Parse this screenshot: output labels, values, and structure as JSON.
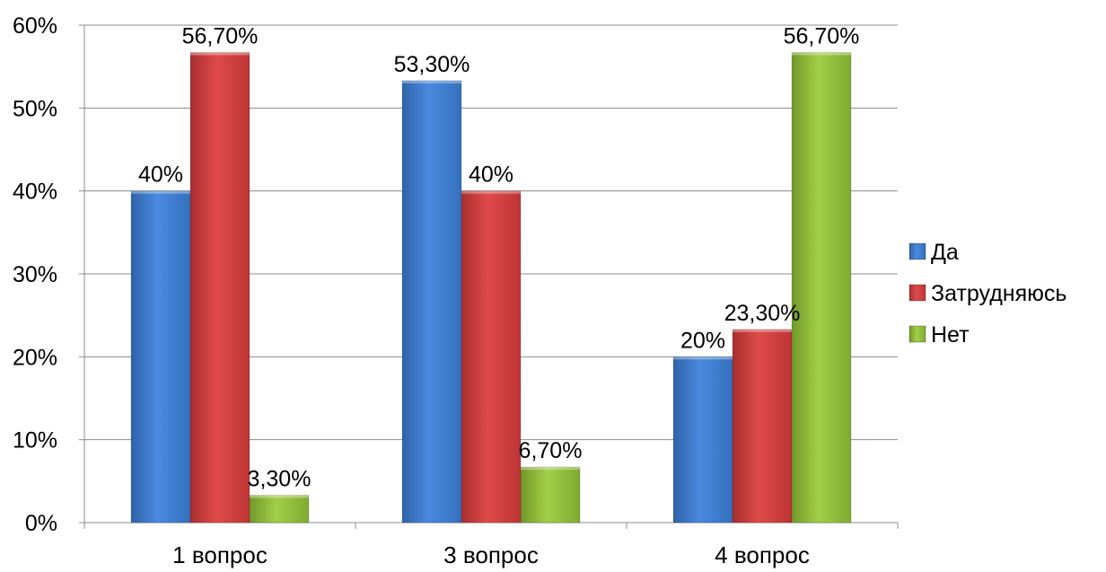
{
  "chart_data": {
    "type": "bar",
    "categories": [
      "1 вопрос",
      "3 вопрос",
      "4 вопрос"
    ],
    "series": [
      {
        "name": "Да",
        "values": [
          40,
          53.3,
          20
        ],
        "labels": [
          "40%",
          "53,30%",
          "20%"
        ],
        "color": "#3f7ecf"
      },
      {
        "name": "Затрудняюсь",
        "values": [
          56.7,
          40,
          23.3
        ],
        "labels": [
          "56,70%",
          "40%",
          "23,30%"
        ],
        "color": "#cf3f3f"
      },
      {
        "name": "Нет",
        "values": [
          3.3,
          6.7,
          56.7
        ],
        "labels": [
          "3,30%",
          "6,70%",
          "56,70%"
        ],
        "color": "#8fbc3a"
      }
    ],
    "ylim": [
      0,
      60
    ],
    "yticks": [
      0,
      10,
      20,
      30,
      40,
      50,
      60
    ],
    "ytick_labels": [
      "0%",
      "10%",
      "20%",
      "30%",
      "40%",
      "50%",
      "60%"
    ],
    "grid": true,
    "legend_position": "right"
  }
}
